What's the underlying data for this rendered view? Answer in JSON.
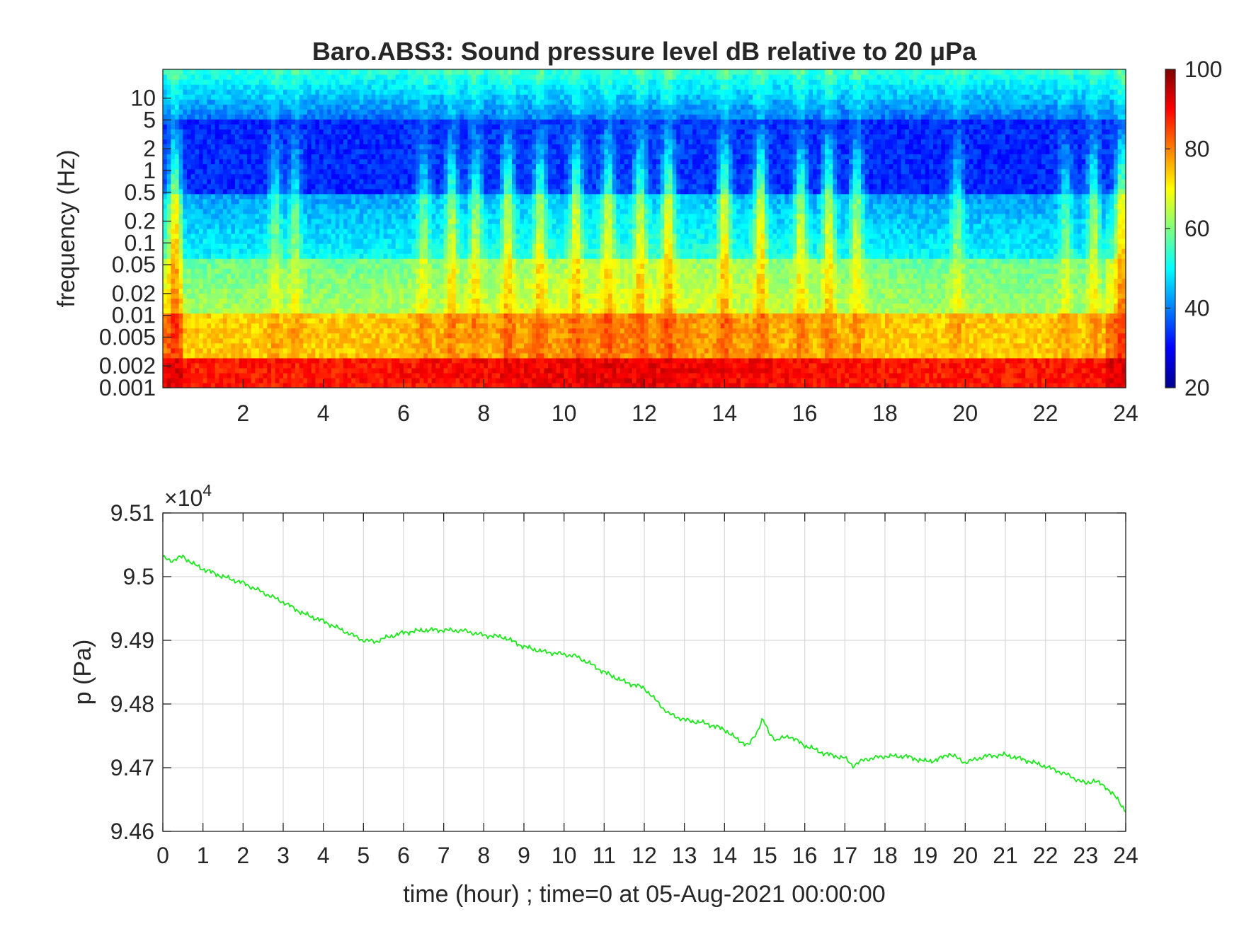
{
  "colors": {
    "pressure_line": "#1ee81e",
    "axis": "#262626",
    "grid": "#d9d9d9",
    "colormap": "jet"
  },
  "chart_data": [
    {
      "type": "heatmap",
      "title": "Baro.ABS3: Sound pressure level dB relative to 20 μPa",
      "xlabel": "",
      "ylabel": "frequency (Hz)",
      "x_range": [
        0,
        24
      ],
      "x_ticks": [
        2,
        4,
        6,
        8,
        10,
        12,
        14,
        16,
        18,
        20,
        22,
        24
      ],
      "y_scale": "log",
      "y_range": [
        0.001,
        25
      ],
      "y_ticks": [
        0.001,
        0.002,
        0.005,
        0.01,
        0.02,
        0.05,
        0.1,
        0.2,
        0.5,
        1,
        2,
        5,
        10
      ],
      "y_tick_labels": [
        "0.001",
        "0.002",
        "0.005",
        "0.01",
        "0.02",
        "0.05",
        "0.1",
        "0.2",
        "0.5",
        "1",
        "2",
        "5",
        "10"
      ],
      "colorbar": {
        "range": [
          20,
          100
        ],
        "ticks": [
          20,
          40,
          60,
          80,
          100
        ],
        "ticklabels": [
          "20",
          "40",
          "60",
          "80",
          "100"
        ]
      },
      "bursts": [
        {
          "time": 0.3,
          "strength": 1.0
        },
        {
          "time": 2.8,
          "strength": 0.55
        },
        {
          "time": 3.3,
          "strength": 0.6
        },
        {
          "time": 6.5,
          "strength": 0.6
        },
        {
          "time": 7.2,
          "strength": 0.8
        },
        {
          "time": 7.8,
          "strength": 0.75
        },
        {
          "time": 8.6,
          "strength": 0.85
        },
        {
          "time": 9.4,
          "strength": 0.8
        },
        {
          "time": 10.3,
          "strength": 0.85
        },
        {
          "time": 11.1,
          "strength": 0.8
        },
        {
          "time": 11.9,
          "strength": 0.8
        },
        {
          "time": 12.6,
          "strength": 0.95
        },
        {
          "time": 14.0,
          "strength": 0.95
        },
        {
          "time": 14.9,
          "strength": 1.0
        },
        {
          "time": 15.9,
          "strength": 0.85
        },
        {
          "time": 16.6,
          "strength": 0.95
        },
        {
          "time": 17.3,
          "strength": 0.8
        },
        {
          "time": 19.8,
          "strength": 0.6
        },
        {
          "time": 22.5,
          "strength": 0.55
        },
        {
          "time": 23.2,
          "strength": 0.8
        },
        {
          "time": 23.9,
          "strength": 1.0
        }
      ]
    },
    {
      "type": "line",
      "title": "",
      "xlabel": "time (hour) ; time=0 at 05-Aug-2021 00:00:00",
      "ylabel": "p (Pa)",
      "ylabel_multiplier": "×10",
      "ylabel_exponent": "4",
      "x_range": [
        0,
        24
      ],
      "y_range": [
        94600,
        95100
      ],
      "x_ticks": [
        0,
        1,
        2,
        3,
        4,
        5,
        6,
        7,
        8,
        9,
        10,
        11,
        12,
        13,
        14,
        15,
        16,
        17,
        18,
        19,
        20,
        21,
        22,
        23,
        24
      ],
      "y_ticks": [
        94600,
        94700,
        94800,
        94900,
        95000,
        95100
      ],
      "y_tick_labels": [
        "9.46",
        "9.47",
        "9.48",
        "9.49",
        "9.5",
        "9.51"
      ],
      "grid": true,
      "series": [
        {
          "x": [
            0,
            0.25,
            0.5,
            0.75,
            1,
            1.5,
            2,
            2.5,
            3,
            3.5,
            4,
            4.5,
            5,
            5.3,
            5.6,
            6,
            6.5,
            7,
            7.5,
            8,
            8.5,
            9,
            9.5,
            10,
            10.3,
            10.6,
            11,
            11.5,
            12,
            12.3,
            12.6,
            13,
            13.5,
            14,
            14.3,
            14.6,
            14.8,
            14.95,
            15.1,
            15.3,
            15.6,
            16,
            16.5,
            17,
            17.2,
            17.5,
            18,
            18.5,
            19,
            19.3,
            19.6,
            20,
            20.5,
            21,
            21.5,
            22,
            22.5,
            23,
            23.2,
            23.5,
            23.8,
            24
          ],
          "y": [
            95030,
            95025,
            95032,
            95020,
            95012,
            95000,
            94990,
            94975,
            94960,
            94942,
            94930,
            94915,
            94900,
            94898,
            94905,
            94912,
            94916,
            94916,
            94915,
            94908,
            94905,
            94890,
            94882,
            94878,
            94875,
            94865,
            94850,
            94835,
            94825,
            94805,
            94785,
            94775,
            94770,
            94760,
            94745,
            94735,
            94755,
            94777,
            94755,
            94743,
            94750,
            94735,
            94722,
            94715,
            94703,
            94713,
            94718,
            94718,
            94710,
            94712,
            94722,
            94708,
            94718,
            94720,
            94712,
            94702,
            94690,
            94675,
            94680,
            94670,
            94650,
            94632
          ]
        }
      ]
    }
  ]
}
